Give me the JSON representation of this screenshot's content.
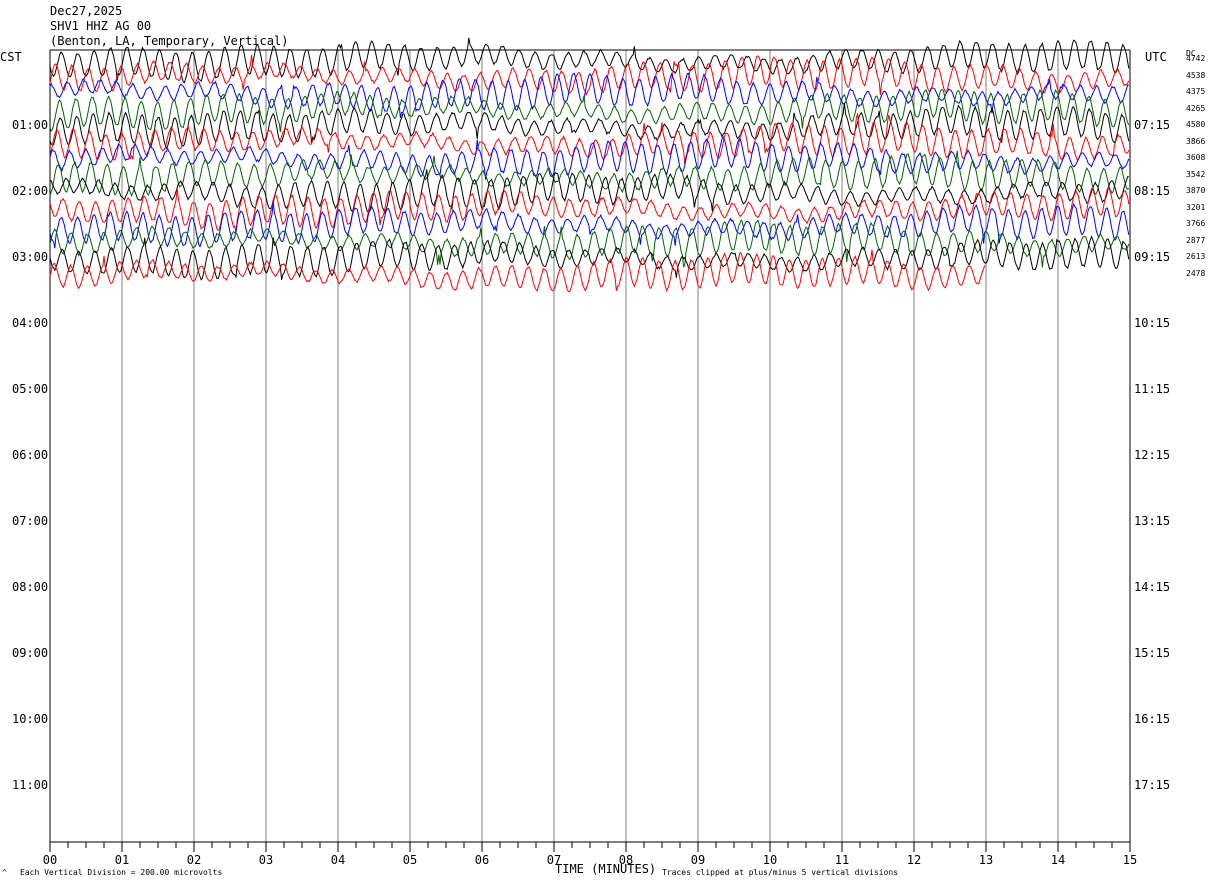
{
  "header": {
    "date": "Dec27,2025",
    "station": "SHV1 HHZ AG 00",
    "location": "(Benton, LA, Temporary, Vertical)"
  },
  "left_tz": "CST",
  "right_tz": "UTC",
  "dc_label": "DC",
  "left_times": [
    "01:00",
    "02:00",
    "03:00",
    "04:00",
    "05:00",
    "06:00",
    "07:00",
    "08:00",
    "09:00",
    "10:00",
    "11:00"
  ],
  "right_times": [
    "07:15",
    "08:15",
    "09:15",
    "10:15",
    "11:15",
    "12:15",
    "13:15",
    "14:15",
    "15:15",
    "16:15",
    "17:15"
  ],
  "dc_values": [
    "4742",
    "4538",
    "4375",
    "4265",
    "4580",
    "3866",
    "3608",
    "3542",
    "3870",
    "3201",
    "3766",
    "2877",
    "2613",
    "2478"
  ],
  "x_ticks": [
    "00",
    "01",
    "02",
    "03",
    "04",
    "05",
    "06",
    "07",
    "08",
    "09",
    "10",
    "11",
    "12",
    "13",
    "14",
    "15"
  ],
  "footer": {
    "xlabel": "TIME (MINUTES)",
    "scale_note": "Each Vertical Division =  200.00 microvolts",
    "clip_note": "Traces clipped at plus/minus 5 vertical divisions"
  },
  "colors": {
    "trace_cycle": [
      "#000000",
      "#ff0000",
      "#0000ff",
      "#006400"
    ],
    "grid": "#808080"
  },
  "chart_data": {
    "type": "line",
    "title": "SHV1 HHZ AG 00",
    "xlabel": "TIME (MINUTES)",
    "x_range_minutes": [
      0,
      15
    ],
    "rows_total": 48,
    "rows_drawn": 14,
    "row_minutes": 15,
    "last_row_end_minute": 13,
    "trace_color_cycle": [
      "black",
      "red",
      "blue",
      "green"
    ],
    "dc_offsets": [
      4742,
      4538,
      4375,
      4265,
      4580,
      3866,
      3608,
      3542,
      3870,
      3201,
      3766,
      2877,
      2613,
      2478
    ],
    "vertical_division_microvolts": 200.0,
    "clip_divisions": 5
  }
}
